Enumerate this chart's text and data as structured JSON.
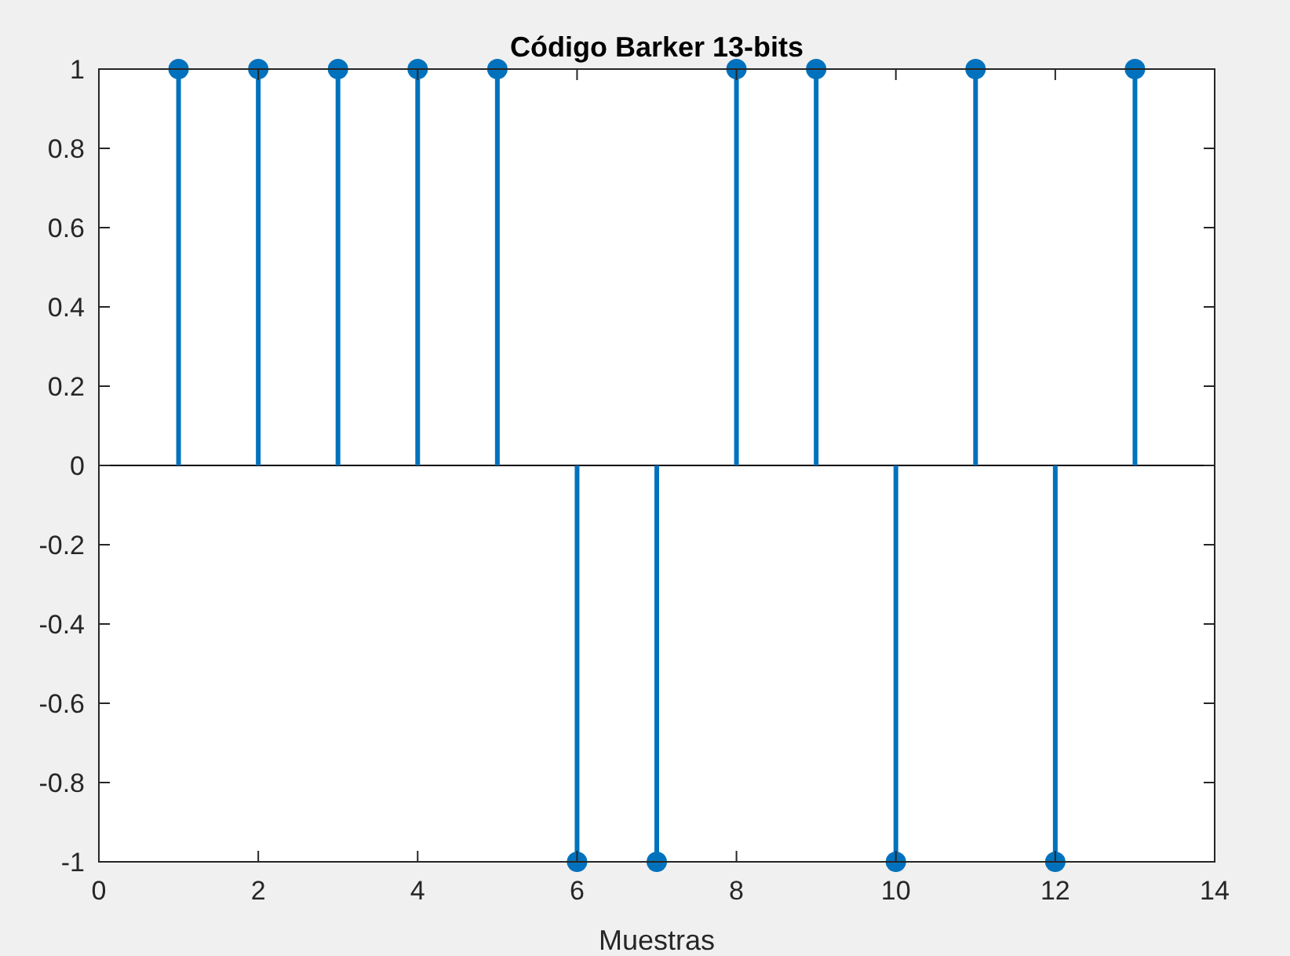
{
  "chart_data": {
    "type": "lollipop",
    "title": "Código Barker 13-bits",
    "xlabel": "Muestras",
    "x": [
      1,
      2,
      3,
      4,
      5,
      6,
      7,
      8,
      9,
      10,
      11,
      12,
      13
    ],
    "values": [
      1,
      1,
      1,
      1,
      1,
      -1,
      -1,
      1,
      1,
      -1,
      1,
      -1,
      1
    ],
    "color": "#0072bd",
    "marker": "circle",
    "xlim": [
      0,
      14
    ],
    "xticks": [
      0,
      2,
      4,
      6,
      8,
      10,
      12,
      14
    ],
    "ylim": [
      -1,
      1
    ],
    "yticks": [
      -1,
      -0.8,
      -0.6,
      -0.4,
      -0.2,
      0,
      0.2,
      0.4,
      0.6,
      0.8,
      1
    ],
    "ref_lines": [
      {
        "axis": "y",
        "value": 0,
        "color": "#000000"
      }
    ]
  }
}
